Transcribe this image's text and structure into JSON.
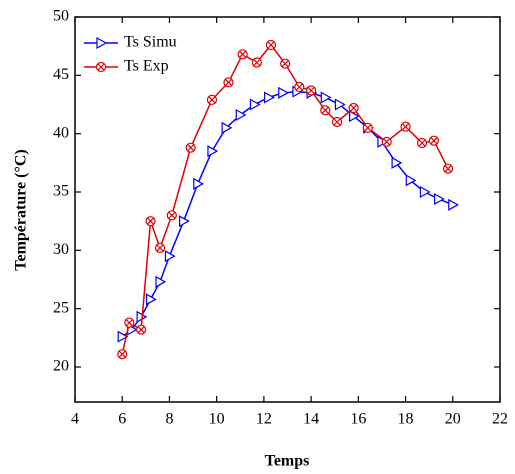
{
  "chart_data": {
    "type": "line",
    "x_label": "Temps",
    "y_label": "Température (°C)",
    "xlim": [
      4,
      22
    ],
    "xticks": [
      4,
      6,
      8,
      10,
      12,
      14,
      16,
      18,
      20,
      22
    ],
    "ylim": [
      17,
      50
    ],
    "yticks": [
      20,
      25,
      30,
      35,
      40,
      45,
      50
    ],
    "legend": "upper left",
    "series": [
      {
        "name": "Ts Simu",
        "color": "#0000ff",
        "marker": "triangle-right",
        "x": [
          6,
          6.4,
          6.8,
          7.2,
          7.6,
          8.0,
          8.6,
          9.2,
          9.8,
          10.4,
          11.0,
          11.6,
          12.2,
          12.8,
          13.4,
          14.0,
          14.6,
          15.2,
          15.8,
          16.4,
          17.0,
          17.6,
          18.2,
          18.8,
          19.4,
          20.0
        ],
        "values": [
          22.6,
          23.2,
          24.3,
          25.8,
          27.3,
          29.5,
          32.5,
          35.7,
          38.5,
          40.5,
          41.6,
          42.5,
          43.1,
          43.5,
          43.6,
          43.5,
          43.1,
          42.5,
          41.5,
          40.5,
          39.3,
          37.5,
          36.0,
          35.0,
          34.4,
          33.9
        ]
      },
      {
        "name": "Ts Exp",
        "color": "#e00000",
        "marker": "circle-x",
        "x": [
          6,
          6.3,
          6.8,
          7.2,
          7.6,
          8.1,
          8.9,
          9.8,
          10.5,
          11.1,
          11.7,
          12.3,
          12.9,
          13.5,
          14.0,
          14.6,
          15.1,
          15.8,
          16.4,
          17.2,
          18.0,
          18.7,
          19.2,
          19.8
        ],
        "values": [
          21.1,
          23.8,
          23.2,
          32.5,
          30.2,
          33.0,
          38.8,
          42.9,
          44.4,
          46.8,
          46.1,
          47.6,
          46.0,
          44.0,
          43.7,
          42.0,
          41.0,
          42.2,
          40.5,
          39.3,
          40.6,
          39.2,
          39.4,
          37.0
        ]
      }
    ]
  }
}
